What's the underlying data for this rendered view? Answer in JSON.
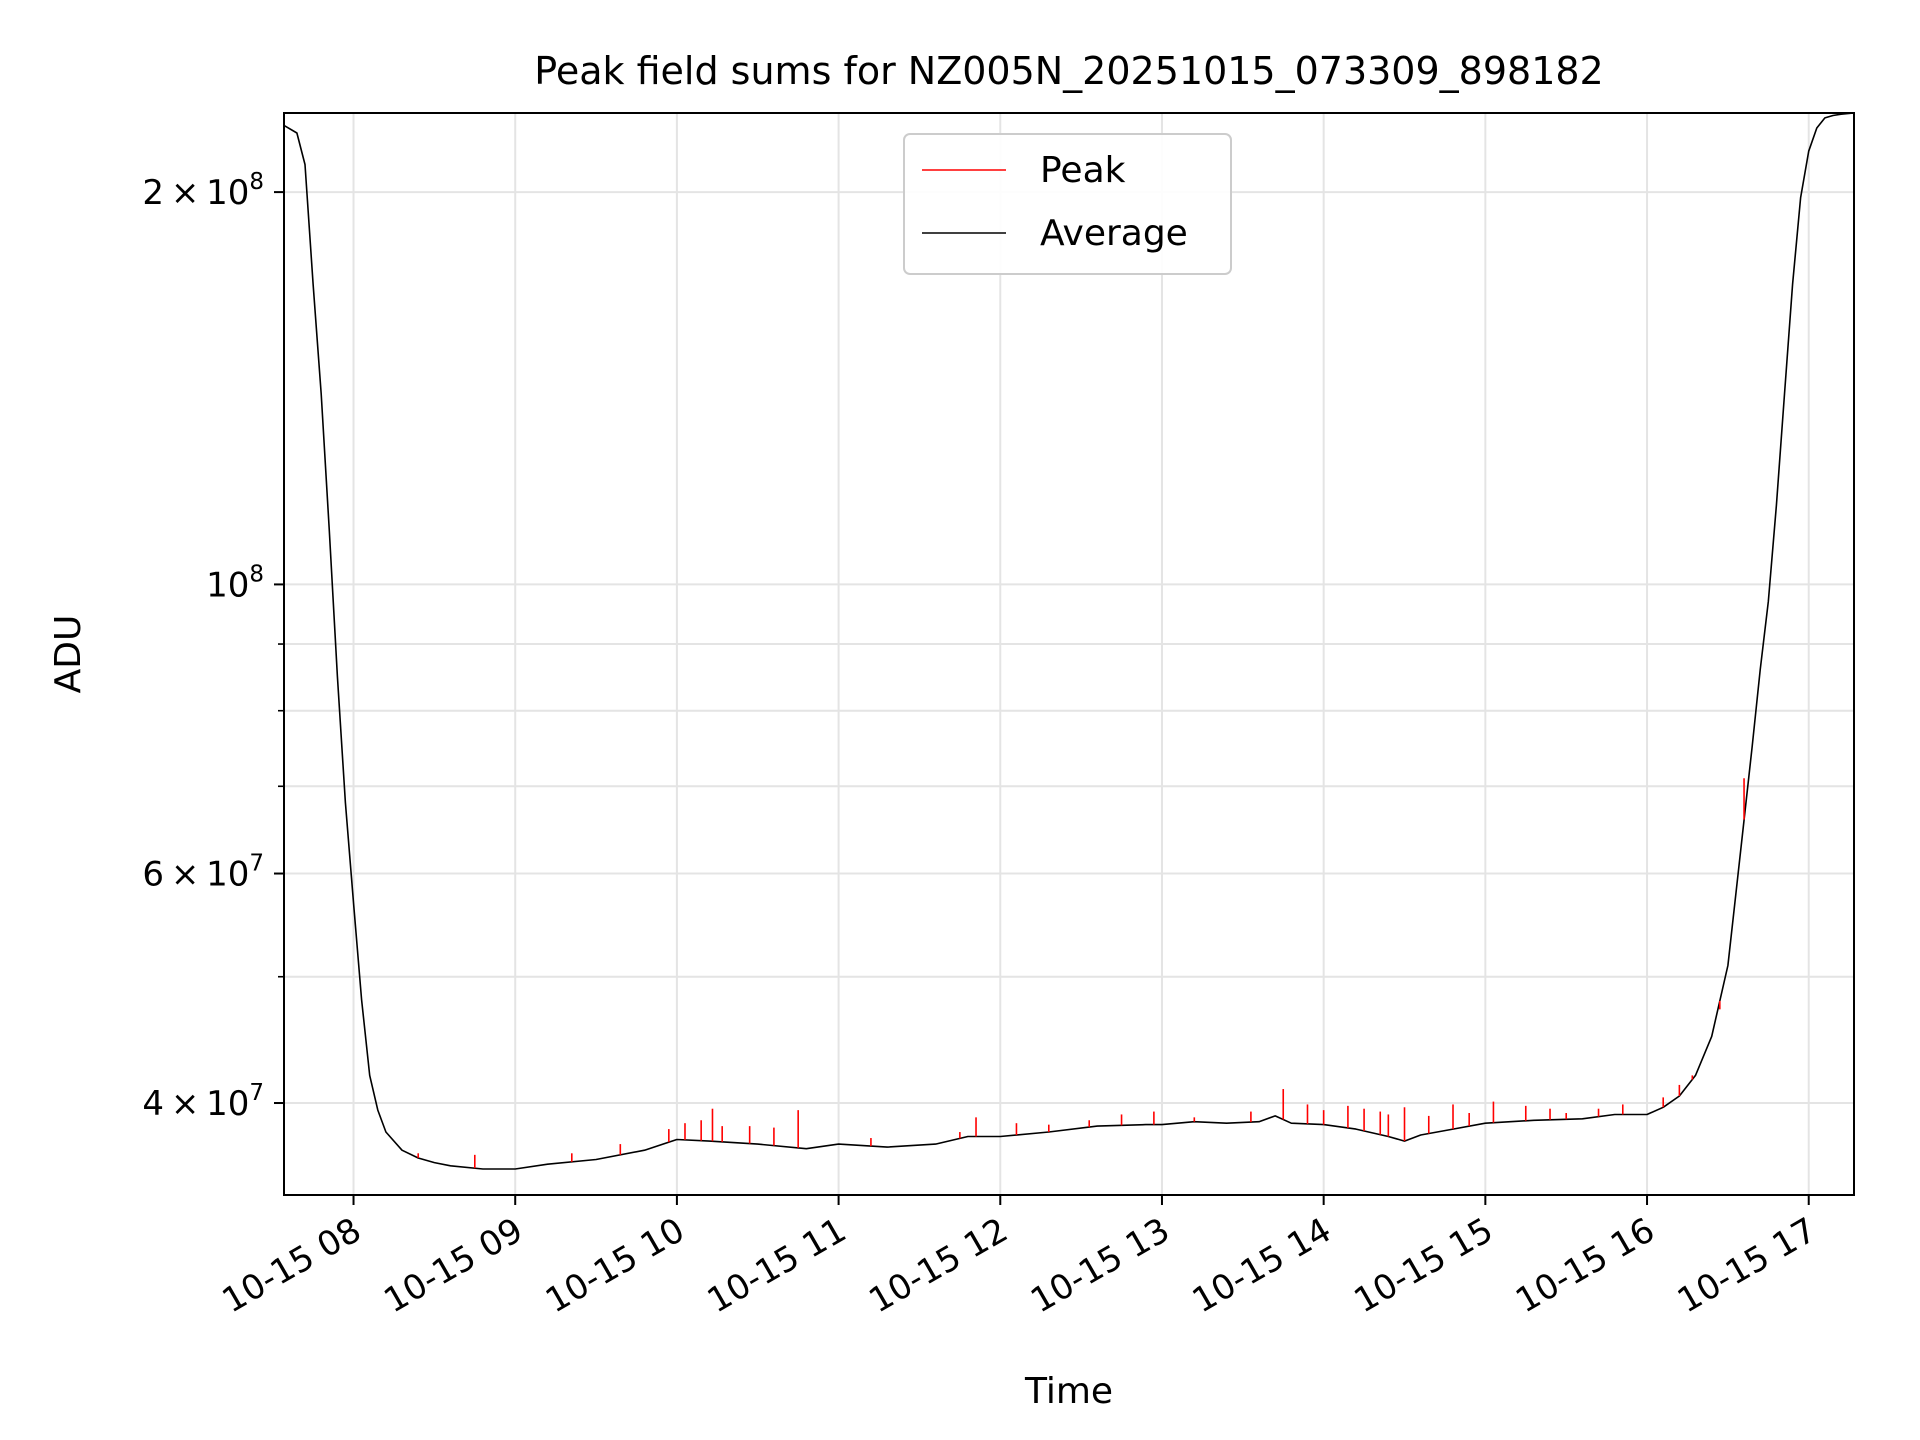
{
  "chart_data": {
    "type": "line",
    "title": "Peak field sums for NZ005N_20251015_073309_898182",
    "xlabel": "Time",
    "ylabel": "ADU",
    "yscale": "log",
    "xlim_hours": [
      7.57,
      17.28
    ],
    "ylim": [
      34000000,
      230000000
    ],
    "grid": true,
    "x_ticks": [
      {
        "hour": 8,
        "label": "10-15 08"
      },
      {
        "hour": 9,
        "label": "10-15 09"
      },
      {
        "hour": 10,
        "label": "10-15 10"
      },
      {
        "hour": 11,
        "label": "10-15 11"
      },
      {
        "hour": 12,
        "label": "10-15 12"
      },
      {
        "hour": 13,
        "label": "10-15 13"
      },
      {
        "hour": 14,
        "label": "10-15 14"
      },
      {
        "hour": 15,
        "label": "10-15 15"
      },
      {
        "hour": 16,
        "label": "10-15 16"
      },
      {
        "hour": 17,
        "label": "10-15 17"
      }
    ],
    "y_major_ticks": [
      {
        "value": 200000000,
        "mantissa": "2",
        "exp": "8"
      },
      {
        "value": 100000000,
        "mantissa": "",
        "exp": "8"
      },
      {
        "value": 60000000,
        "mantissa": "6",
        "exp": "7"
      },
      {
        "value": 40000000,
        "mantissa": "4",
        "exp": "7"
      }
    ],
    "y_minor_ticks": [
      50000000,
      70000000,
      80000000,
      90000000
    ],
    "legend": {
      "position": "upper center",
      "entries": [
        {
          "name": "Peak",
          "color": "#ff0000"
        },
        {
          "name": "Average",
          "color": "#000000"
        }
      ]
    },
    "series": [
      {
        "name": "Average",
        "color": "#000000",
        "x_hours": [
          7.57,
          7.65,
          7.7,
          7.75,
          7.8,
          7.85,
          7.9,
          7.95,
          8.0,
          8.05,
          8.1,
          8.15,
          8.2,
          8.3,
          8.4,
          8.5,
          8.6,
          8.8,
          9.0,
          9.2,
          9.5,
          9.8,
          10.0,
          10.2,
          10.5,
          10.8,
          11.0,
          11.3,
          11.6,
          11.8,
          12.0,
          12.3,
          12.6,
          12.9,
          13.0,
          13.2,
          13.4,
          13.6,
          13.7,
          13.8,
          14.0,
          14.2,
          14.4,
          14.5,
          14.6,
          14.8,
          15.0,
          15.3,
          15.6,
          15.8,
          16.0,
          16.1,
          16.2,
          16.3,
          16.4,
          16.5,
          16.55,
          16.6,
          16.65,
          16.7,
          16.75,
          16.8,
          16.85,
          16.9,
          16.95,
          17.0,
          17.05,
          17.1,
          17.15,
          17.2,
          17.28
        ],
        "y_adu": [
          225000000,
          222000000,
          210000000,
          170000000,
          140000000,
          110000000,
          85000000,
          68000000,
          57000000,
          48000000,
          42000000,
          39500000,
          38000000,
          36800000,
          36300000,
          36000000,
          35800000,
          35600000,
          35600000,
          35900000,
          36200000,
          36800000,
          37500000,
          37400000,
          37200000,
          36900000,
          37200000,
          37000000,
          37200000,
          37700000,
          37700000,
          38000000,
          38400000,
          38500000,
          38500000,
          38700000,
          38600000,
          38700000,
          39100000,
          38600000,
          38500000,
          38200000,
          37700000,
          37400000,
          37800000,
          38200000,
          38600000,
          38800000,
          38900000,
          39200000,
          39200000,
          39700000,
          40500000,
          42000000,
          45000000,
          51000000,
          58000000,
          66000000,
          75000000,
          86000000,
          97000000,
          115000000,
          140000000,
          170000000,
          198000000,
          215000000,
          224000000,
          228000000,
          229000000,
          229500000,
          230000000
        ]
      },
      {
        "name": "Peak",
        "color": "#ff0000",
        "x_hours": [
          8.4,
          8.75,
          9.35,
          9.65,
          9.95,
          10.05,
          10.15,
          10.22,
          10.28,
          10.45,
          10.6,
          10.75,
          11.2,
          11.75,
          11.85,
          12.1,
          12.3,
          12.55,
          12.75,
          12.95,
          13.2,
          13.55,
          13.75,
          13.9,
          14.0,
          14.15,
          14.25,
          14.35,
          14.4,
          14.5,
          14.65,
          14.8,
          14.9,
          15.05,
          15.25,
          15.4,
          15.5,
          15.7,
          15.85,
          16.1,
          16.2,
          16.28,
          16.45,
          16.6
        ],
        "y_adu": [
          36600000,
          36500000,
          36600000,
          37200000,
          38200000,
          38600000,
          38800000,
          39600000,
          38400000,
          38400000,
          38300000,
          39500000,
          37600000,
          38000000,
          39000000,
          38600000,
          38500000,
          38800000,
          39200000,
          39400000,
          39000000,
          39400000,
          41000000,
          39900000,
          39500000,
          39800000,
          39600000,
          39400000,
          39200000,
          39700000,
          39100000,
          39900000,
          39300000,
          40100000,
          39800000,
          39600000,
          39300000,
          39600000,
          39900000,
          40400000,
          41300000,
          42000000,
          47200000,
          71000000
        ]
      }
    ]
  }
}
